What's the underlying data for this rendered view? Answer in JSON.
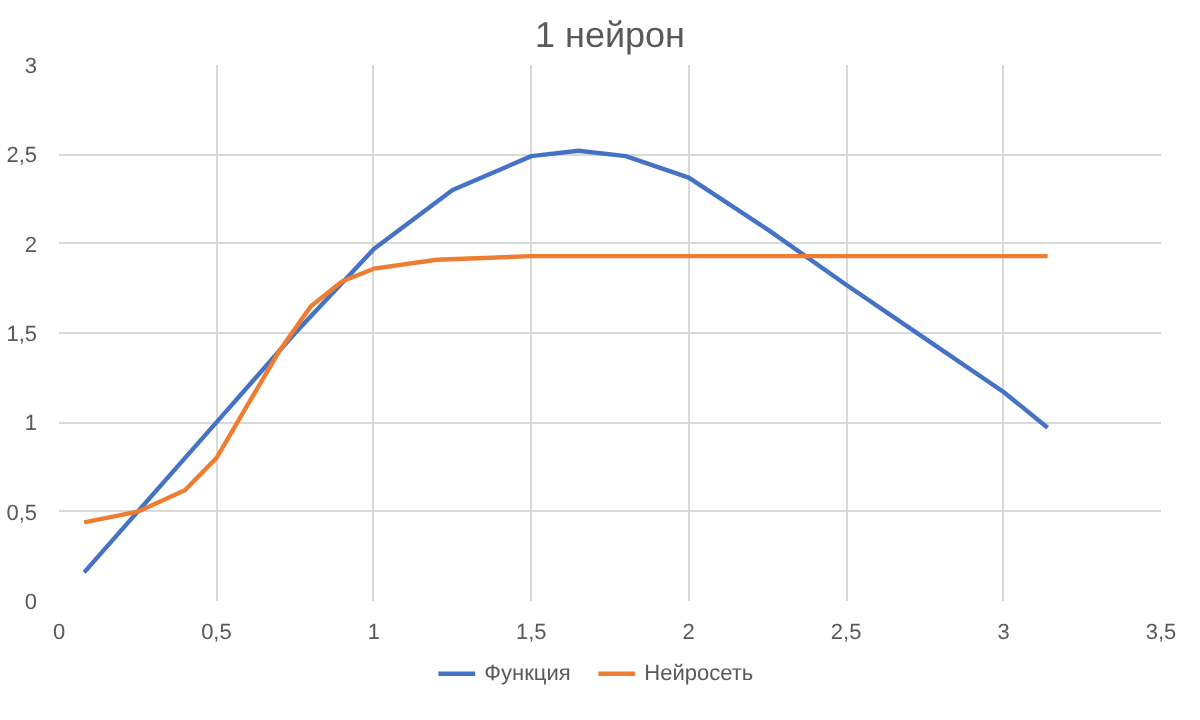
{
  "chart_data": {
    "type": "line",
    "title": "1 нейрон",
    "xlim": [
      0,
      3.5
    ],
    "ylim": [
      0,
      3
    ],
    "xticks": [
      0,
      {
        "value": 0.5,
        "label": "0,5"
      },
      1,
      {
        "value": 1.5,
        "label": "1,5"
      },
      2,
      {
        "value": 2.5,
        "label": "2,5"
      },
      3,
      {
        "value": 3.5,
        "label": "3,5"
      }
    ],
    "yticks": [
      0,
      {
        "value": 0.5,
        "label": "0,5"
      },
      1,
      {
        "value": 1.5,
        "label": "1,5"
      },
      2,
      {
        "value": 2.5,
        "label": "2,5"
      },
      3
    ],
    "grid": true,
    "legend": "bottom",
    "marker": "none",
    "line_style": "solid",
    "series": [
      {
        "name": "Функция",
        "color": "#4472c4",
        "x": [
          0.08,
          0.25,
          0.5,
          0.75,
          1.0,
          1.25,
          1.5,
          1.65,
          1.8,
          2.0,
          2.25,
          2.5,
          2.75,
          3.0,
          3.14
        ],
        "values": [
          0.16,
          0.5,
          1.0,
          1.5,
          1.97,
          2.3,
          2.49,
          2.52,
          2.49,
          2.37,
          2.08,
          1.77,
          1.47,
          1.17,
          0.97
        ]
      },
      {
        "name": "Нейросеть",
        "color": "#ed7d31",
        "x": [
          0.08,
          0.25,
          0.4,
          0.5,
          0.6,
          0.7,
          0.8,
          0.9,
          1.0,
          1.2,
          1.5,
          2.0,
          2.5,
          3.14
        ],
        "values": [
          0.44,
          0.5,
          0.62,
          0.8,
          1.1,
          1.4,
          1.65,
          1.79,
          1.86,
          1.91,
          1.93,
          1.93,
          1.93,
          1.93
        ]
      }
    ]
  }
}
